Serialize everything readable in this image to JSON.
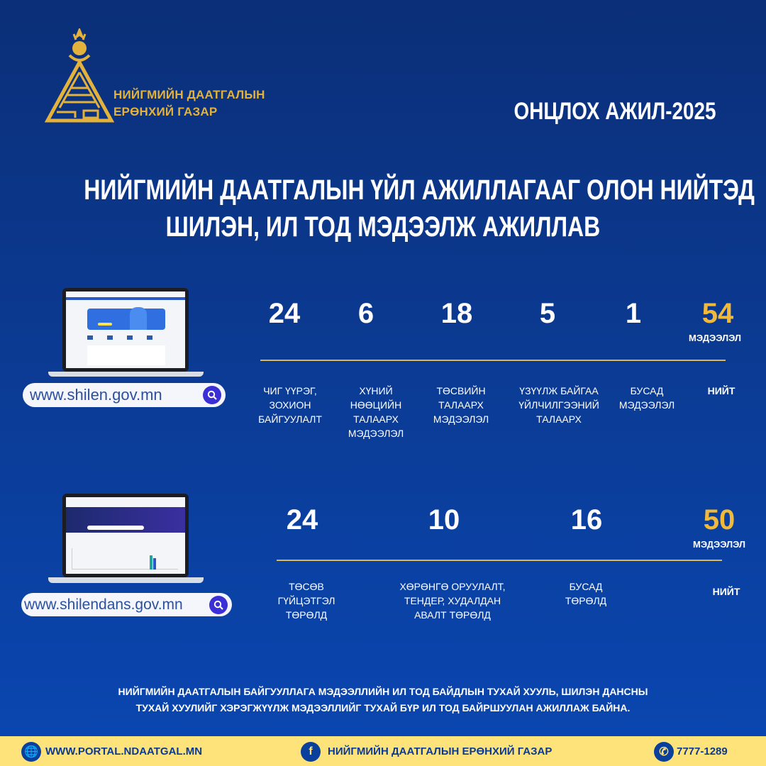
{
  "logo": {
    "line1": "НИЙГМИЙН ДААТГАЛЫН",
    "line2": "ЕРӨНХИЙ ГАЗАР"
  },
  "highlight": "ОНЦЛОХ АЖИЛ-2025",
  "headline": {
    "line1": "НИЙГМИЙН ДААТГАЛЫН ҮЙЛ АЖИЛЛАГААГ ОЛОН НИЙТЭД",
    "line2": "ШИЛЭН, ИЛ ТОД МЭДЭЭЛЖ АЖИЛЛАВ"
  },
  "section1": {
    "url": "www.shilen.gov.mn",
    "stats": [
      {
        "value": "24",
        "label": "ЧИГ ҮҮРЭГ,\nЗОХИОН\nБАЙГУУЛАЛТ"
      },
      {
        "value": "6",
        "label": "ХҮНИЙ\nНӨӨЦИЙН\nТАЛААРХ\nМЭДЭЭЛЭЛ"
      },
      {
        "value": "18",
        "label": "ТӨСВИЙН\nТАЛААРХ\nМЭДЭЭЛЭЛ"
      },
      {
        "value": "5",
        "label": "ҮЗҮҮЛЖ БАЙГАА\nҮЙЛЧИЛГЭЭНИЙ\nТАЛААРХ"
      },
      {
        "value": "1",
        "label": "БУСАД\nМЭДЭЭЛЭЛ"
      }
    ],
    "total": {
      "value": "54",
      "unit": "МЭДЭЭЛЭЛ",
      "label": "НИЙТ"
    }
  },
  "section2": {
    "url": "www.shilendans.gov.mn",
    "stats": [
      {
        "value": "24",
        "label": "ТӨСӨВ\nГҮЙЦЭТГЭЛ\nТӨРӨЛД"
      },
      {
        "value": "10",
        "label": "ХӨРӨНГӨ ОРУУЛАЛТ,\nТЕНДЕР, ХУДАЛДАН\nАВАЛТ ТӨРӨЛД"
      },
      {
        "value": "16",
        "label": "БУСАД\nТӨРӨЛД"
      }
    ],
    "total": {
      "value": "50",
      "unit": "МЭДЭЭЛЭЛ",
      "label": "НИЙТ"
    }
  },
  "bottom_text": {
    "line1": "НИЙГМИЙН ДААТГАЛЫН БАЙГУУЛЛАГА МЭДЭЭЛЛИЙН ИЛ ТОД БАЙДЛЫН ТУХАЙ ХУУЛЬ, ШИЛЭН ДАНСНЫ",
    "line2": "ТУХАЙ ХУУЛИЙГ ХЭРЭГЖҮҮЛЖ МЭДЭЭЛЛИЙГ ТУХАЙ БҮР ИЛ ТОД БАЙРШУУЛАН АЖИЛЛАЖ БАЙНА."
  },
  "footer": {
    "website": "WWW.PORTAL.NDAATGAL.MN",
    "facebook": "НИЙГМИЙН ДААТГАЛЫН ЕРӨНХИЙ ГАЗАР",
    "phone": "7777-1289"
  },
  "colors": {
    "background": "#0b3a92",
    "gold": "#f0b93a",
    "footer": "#fde37a",
    "search": "#3b2fd6"
  }
}
